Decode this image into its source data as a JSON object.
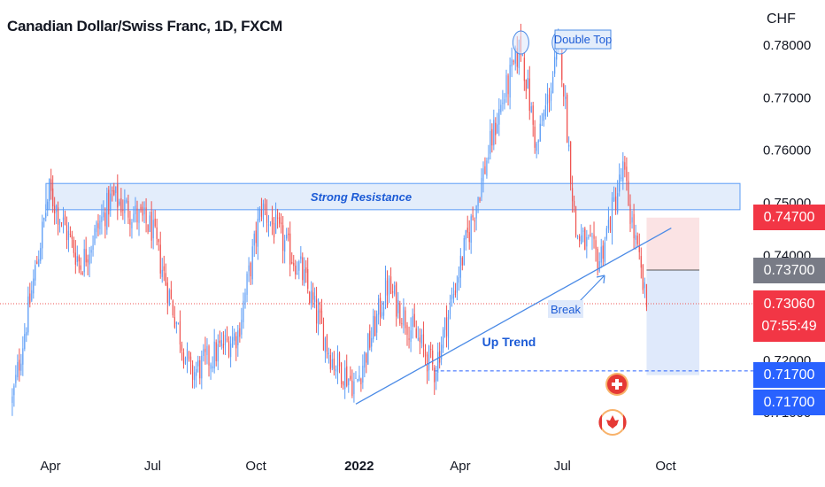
{
  "header": {
    "title": "Canadian Dollar/Swiss Franc, 1D, FXCM",
    "currency": "CHF"
  },
  "annotations": {
    "double_top": "Double Top",
    "strong_resistance": "Strong Resistance",
    "break": "Break",
    "up_trend": "Up Trend"
  },
  "price_tags": {
    "stop_loss": "0.74700",
    "entry": "0.73700",
    "last_price": "0.73060",
    "countdown": "07:55:49",
    "target": "0.71700",
    "target_alt": "0.71700"
  },
  "icons": [
    "swiss-flag-icon",
    "canadian-flag-icon"
  ],
  "colors": {
    "up": "#5b9cf6",
    "down": "#ef5350",
    "resistance_fill": "#e3edfb",
    "resistance_stroke": "#5b9cf6",
    "trendline": "#4a8ae6",
    "stop_zone": "#fbe3e4",
    "target_zone": "#dfe9fb",
    "tag_red": "#f23645",
    "tag_gray": "#787b86",
    "tag_blue": "#2962ff"
  },
  "chart_data": {
    "type": "candlestick",
    "symbol": "CADCHF",
    "timeframe": "1D",
    "y_axis": {
      "ticks": [
        "0.71000",
        "0.72000",
        "0.73000",
        "0.74000",
        "0.75000",
        "0.76000",
        "0.77000",
        "0.78000"
      ],
      "range": [
        0.709,
        0.7815
      ]
    },
    "x_axis": {
      "ticks": [
        "Apr",
        "Jul",
        "Oct",
        "2022",
        "Apr",
        "Jul",
        "Oct"
      ]
    },
    "price_path": [
      {
        "date": "2021-02-26",
        "close": 0.712
      },
      {
        "date": "2021-03-31",
        "close": 0.752
      },
      {
        "date": "2021-04-28",
        "close": 0.738
      },
      {
        "date": "2021-05-26",
        "close": 0.751
      },
      {
        "date": "2021-06-30",
        "close": 0.745
      },
      {
        "date": "2021-08-04",
        "close": 0.717
      },
      {
        "date": "2021-09-15",
        "close": 0.725
      },
      {
        "date": "2021-10-06",
        "close": 0.749
      },
      {
        "date": "2021-11-10",
        "close": 0.737
      },
      {
        "date": "2021-12-08",
        "close": 0.72
      },
      {
        "date": "2021-12-29",
        "close": 0.715
      },
      {
        "date": "2022-01-26",
        "close": 0.734
      },
      {
        "date": "2022-03-09",
        "close": 0.718
      },
      {
        "date": "2022-04-06",
        "close": 0.742
      },
      {
        "date": "2022-05-04",
        "close": 0.766
      },
      {
        "date": "2022-05-25",
        "close": 0.78
      },
      {
        "date": "2022-06-08",
        "close": 0.76
      },
      {
        "date": "2022-06-29",
        "close": 0.78
      },
      {
        "date": "2022-07-13",
        "close": 0.744
      },
      {
        "date": "2022-08-03",
        "close": 0.739
      },
      {
        "date": "2022-08-24",
        "close": 0.756
      },
      {
        "date": "2022-09-14",
        "close": 0.73
      }
    ],
    "resistance_zone": [
      0.7485,
      0.7535
    ],
    "trendline": {
      "from": [
        "2021-12-29",
        0.7115
      ],
      "to": [
        "2022-10-06",
        0.745
      ]
    },
    "trendline_anchor": [
      "2022-03-09",
      0.7178
    ],
    "position": {
      "start": "2022-09-14",
      "end": "2022-10-31",
      "stop": 0.747,
      "entry": 0.737,
      "target": 0.717
    },
    "double_top_points": [
      [
        "2022-05-25",
        0.78
      ],
      [
        "2022-06-29",
        0.78
      ]
    ],
    "last_price": 0.7306
  }
}
